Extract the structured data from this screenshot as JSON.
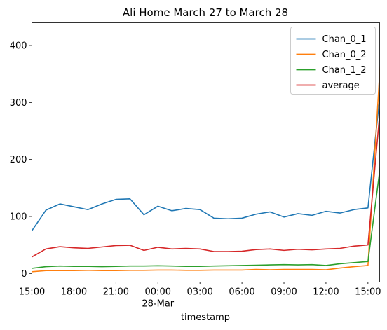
{
  "chart_data": {
    "type": "line",
    "title": "Ali Home March 27 to March 28",
    "xlabel": "timestamp",
    "ylabel": "",
    "x_start": "2024-03-27T15:00",
    "x_step_hours": 1,
    "xlim": [
      "2024-03-27T15:00",
      "2024-03-28T15:50"
    ],
    "ylim": [
      -15,
      440
    ],
    "grid": false,
    "legend": "top-right",
    "x_ticks": [
      {
        "at": "2024-03-27T15:00",
        "label": "15:00",
        "sublabel": ""
      },
      {
        "at": "2024-03-27T18:00",
        "label": "18:00",
        "sublabel": ""
      },
      {
        "at": "2024-03-27T21:00",
        "label": "21:00",
        "sublabel": ""
      },
      {
        "at": "2024-03-28T00:00",
        "label": "00:00",
        "sublabel": "28-Mar"
      },
      {
        "at": "2024-03-28T03:00",
        "label": "03:00",
        "sublabel": ""
      },
      {
        "at": "2024-03-28T06:00",
        "label": "06:00",
        "sublabel": ""
      },
      {
        "at": "2024-03-28T09:00",
        "label": "09:00",
        "sublabel": ""
      },
      {
        "at": "2024-03-28T12:00",
        "label": "12:00",
        "sublabel": ""
      },
      {
        "at": "2024-03-28T15:00",
        "label": "15:00",
        "sublabel": ""
      }
    ],
    "y_ticks": [
      0,
      100,
      200,
      300,
      400
    ],
    "series": [
      {
        "name": "Chan_0_1",
        "color": "#1f77b4",
        "values": [
          75,
          111,
          122,
          117,
          112,
          122,
          130,
          131,
          103,
          118,
          110,
          114,
          112,
          97,
          96,
          97,
          104,
          108,
          99,
          105,
          102,
          109,
          106,
          112,
          115,
          347
        ]
      },
      {
        "name": "Chan_0_2",
        "color": "#ff7f0e",
        "values": [
          3,
          5,
          5,
          5,
          5.5,
          5,
          5,
          5.5,
          5.5,
          6,
          6,
          5.5,
          5.5,
          6,
          6,
          6,
          7,
          6.5,
          7,
          7,
          7,
          6.5,
          9.5,
          12,
          14,
          418
        ]
      },
      {
        "name": "Chan_1_2",
        "color": "#2ca02c",
        "values": [
          9,
          12,
          13,
          12.5,
          12.5,
          12,
          12.5,
          13,
          13,
          13.5,
          13,
          12.5,
          12.5,
          13,
          13.5,
          14,
          14.5,
          15,
          15.5,
          15,
          15.5,
          14,
          17,
          19,
          21,
          211
        ]
      },
      {
        "name": "average",
        "color": "#d62728",
        "values": [
          29,
          43,
          47,
          45,
          44,
          46.5,
          49,
          49.5,
          40.5,
          46,
          43,
          44,
          43,
          38.5,
          38.5,
          39,
          42,
          43,
          40.5,
          42.5,
          41.5,
          43,
          44,
          48,
          50,
          325
        ]
      }
    ]
  }
}
